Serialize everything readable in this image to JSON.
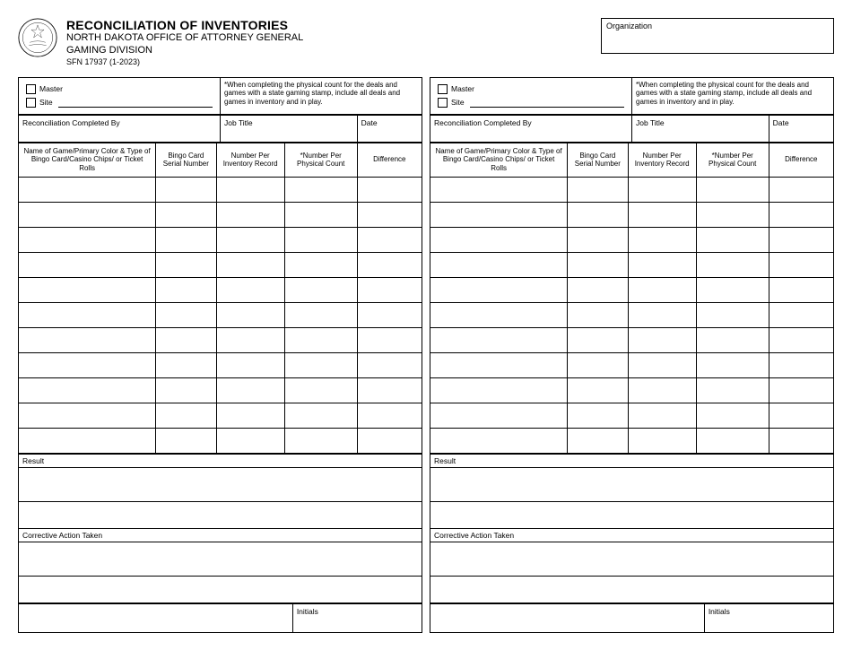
{
  "header": {
    "title": "RECONCILIATION OF INVENTORIES",
    "dept1": "NORTH DAKOTA OFFICE OF ATTORNEY GENERAL",
    "dept2": "GAMING DIVISION",
    "form_no": "SFN 17937 (1-2023)",
    "org_label": "Organization"
  },
  "panel": {
    "master": "Master",
    "site": "Site",
    "note": "*When completing the physical count for the deals and games with a state gaming stamp, include all deals and games in inventory and in play.",
    "completed_by": "Reconciliation Completed By",
    "job_title": "Job Title",
    "date": "Date",
    "columns": {
      "c1": "Name of Game/Primary Color & Type of Bingo Card/Casino Chips/ or Ticket Rolls",
      "c2": "Bingo Card Serial Number",
      "c3": "Number Per Inventory Record",
      "c4": "*Number Per Physical Count",
      "c5": "Difference"
    },
    "result": "Result",
    "corrective": "Corrective Action Taken",
    "initials": "Initials",
    "data_row_count": 11,
    "col_widths_pct": [
      34,
      15,
      17,
      18,
      16
    ]
  },
  "style": {
    "border_color": "#000000",
    "background": "#ffffff",
    "font": "Arial"
  }
}
